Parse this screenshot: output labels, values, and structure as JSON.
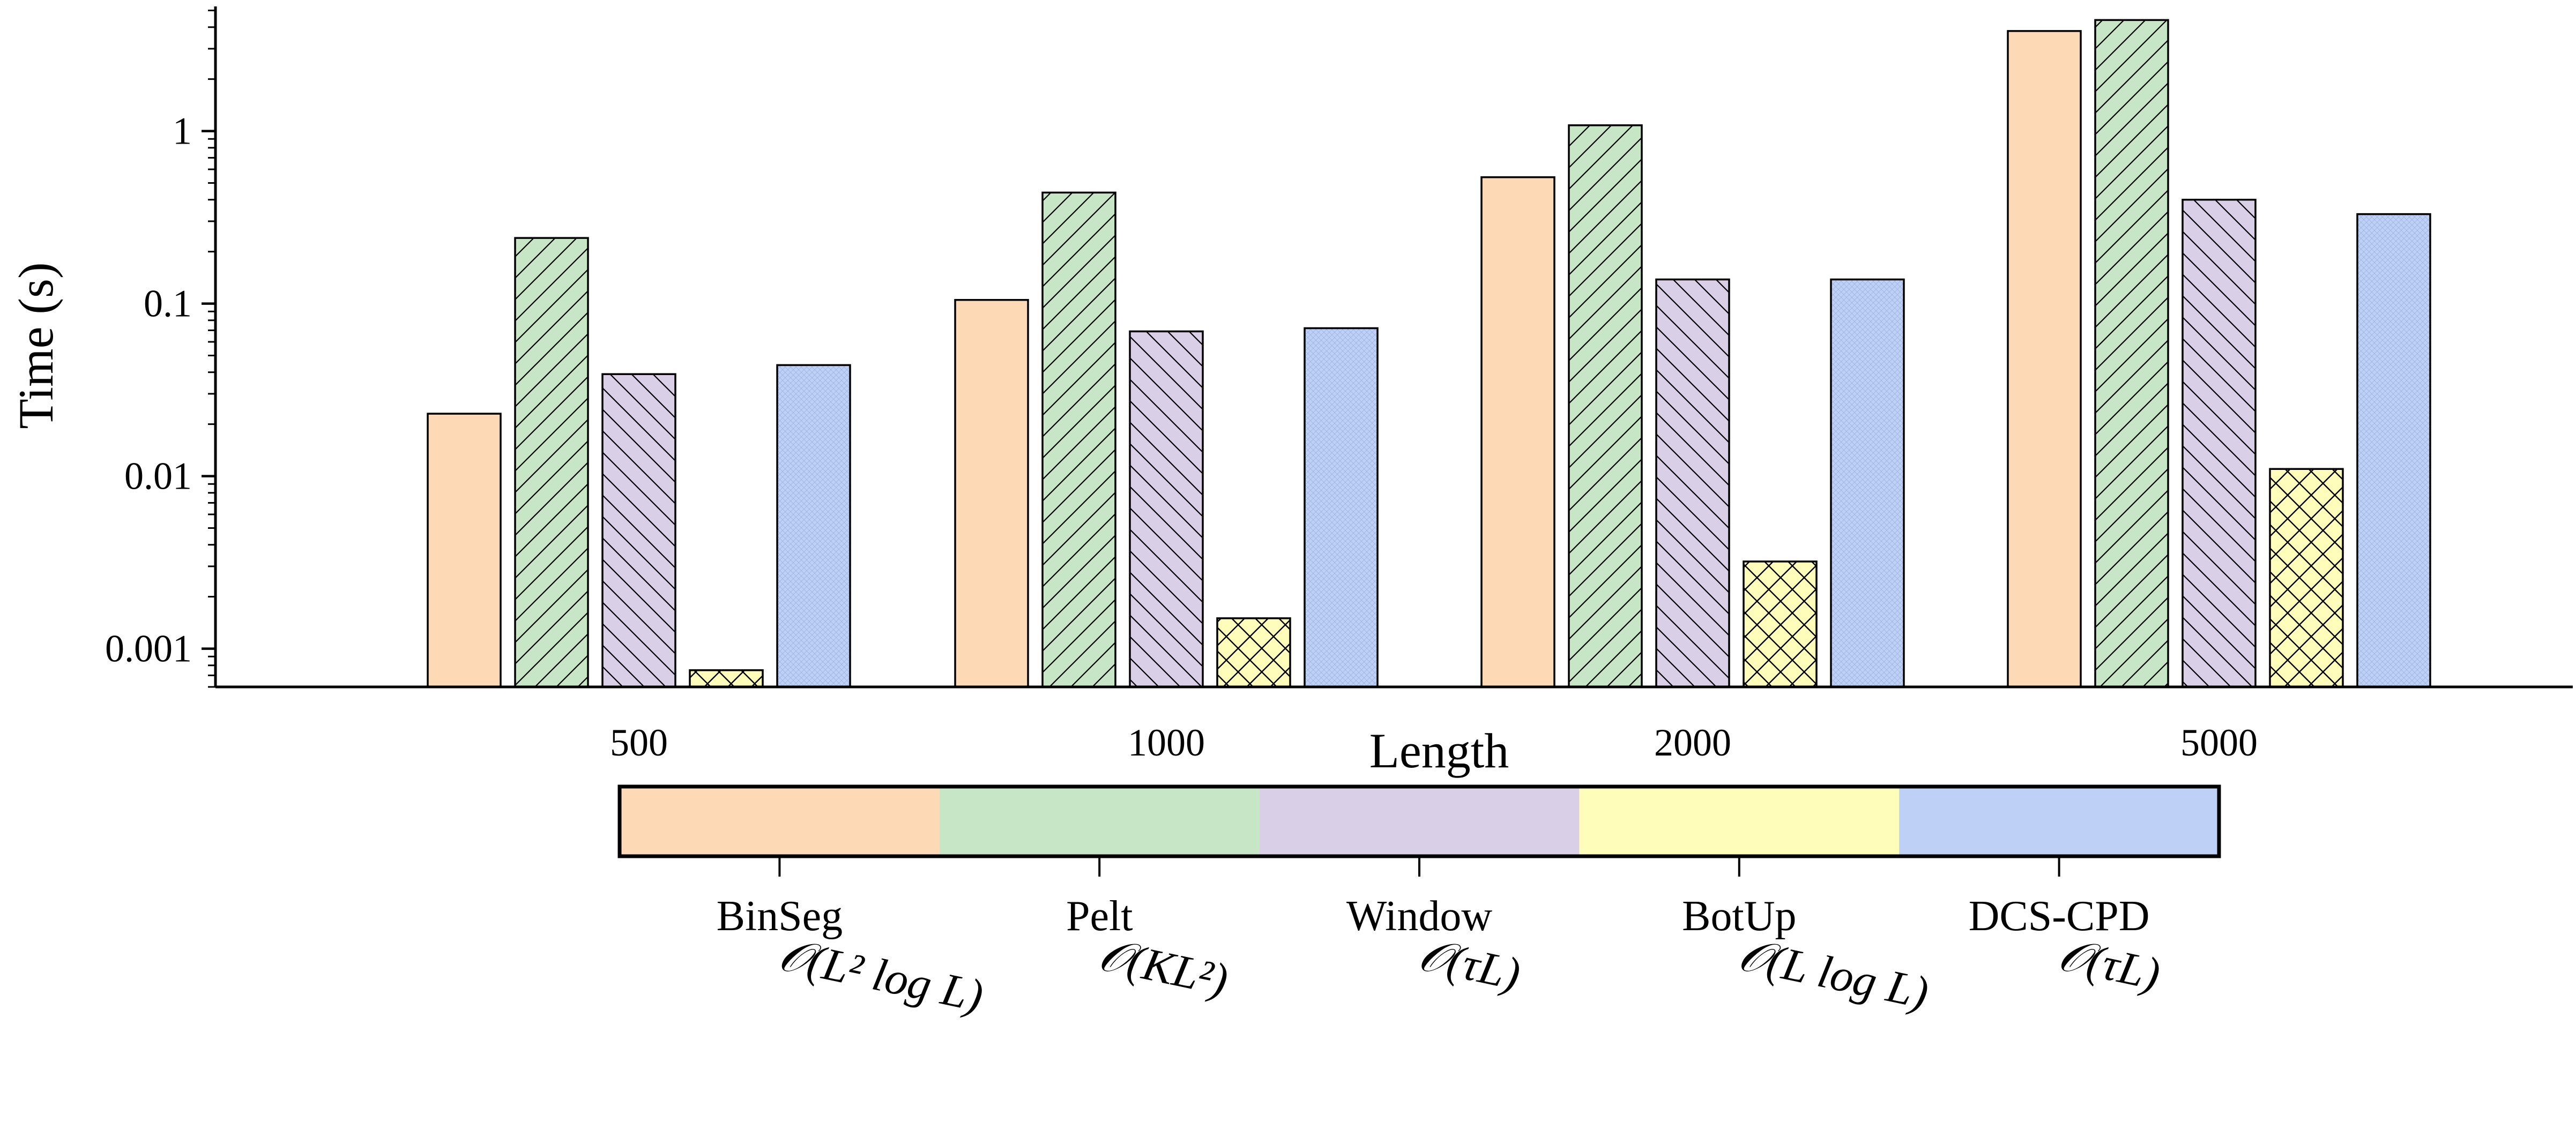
{
  "chart_data": {
    "type": "bar",
    "xlabel": "Length",
    "ylabel": "Time (s)",
    "yscale": "log",
    "ylim": [
      0.0006,
      6.0
    ],
    "yticks": [
      {
        "value": 0.001,
        "label": "0.001"
      },
      {
        "value": 0.01,
        "label": "0.01"
      },
      {
        "value": 0.1,
        "label": "0.1"
      },
      {
        "value": 1,
        "label": "1"
      }
    ],
    "categories": [
      "500",
      "1000",
      "2000",
      "5000"
    ],
    "grid": false,
    "legend_position": "bottom",
    "series": [
      {
        "name": "BinSeg",
        "complexity": "𝒪(L² log L)",
        "color": "#fdd9b5",
        "hatch": "none",
        "values": [
          0.023,
          0.105,
          0.54,
          3.8
        ]
      },
      {
        "name": "Pelt",
        "complexity": "𝒪(KL²)",
        "color": "#c6e6c6",
        "hatch": "slash",
        "values": [
          0.24,
          0.44,
          1.08,
          4.4
        ]
      },
      {
        "name": "Window",
        "complexity": "𝒪(τL)",
        "color": "#d9d0e8",
        "hatch": "back",
        "values": [
          0.039,
          0.069,
          0.138,
          0.4
        ]
      },
      {
        "name": "BotUp",
        "complexity": "𝒪(L log L)",
        "color": "#fefdb9",
        "hatch": "cross",
        "values": [
          0.00075,
          0.0015,
          0.0032,
          0.011
        ]
      },
      {
        "name": "DCS-CPD",
        "complexity": "𝒪(τL)",
        "color": "#bed0f5",
        "hatch": "dense",
        "values": [
          0.044,
          0.072,
          0.138,
          0.33
        ]
      }
    ]
  }
}
